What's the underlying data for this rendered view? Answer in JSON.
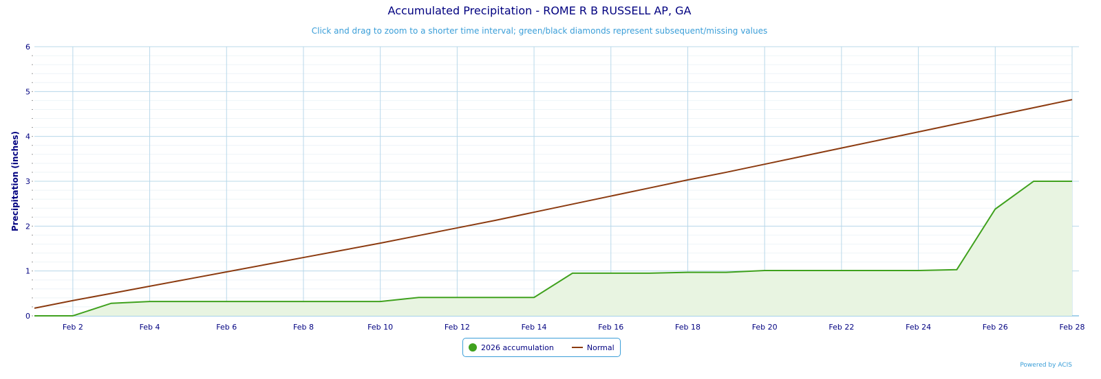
{
  "title": "Accumulated Precipitation - ROME R B RUSSELL AP, GA",
  "subtitle": "Click and drag to zoom to a shorter time interval; green/black diamonds represent subsequent/missing values",
  "credit": "Powered by ACIS",
  "colors": {
    "accum": "#3fa11d",
    "accum_fill": "#e8f4e1",
    "normal": "#8b3a0f",
    "grid": "#b8d8ea",
    "text": "#000080"
  },
  "chart_data": {
    "type": "line",
    "title": "Accumulated Precipitation - ROME R B RUSSELL AP, GA",
    "ylabel": "Precipitation (inches)",
    "xlabel": "",
    "ylim": [
      0,
      6
    ],
    "yticks": [
      "0",
      "1",
      "2",
      "3",
      "4",
      "5",
      "6"
    ],
    "xticks": [
      "Feb 2",
      "Feb 4",
      "Feb 6",
      "Feb 8",
      "Feb 10",
      "Feb 12",
      "Feb 14",
      "Feb 16",
      "Feb 18",
      "Feb 20",
      "Feb 22",
      "Feb 24",
      "Feb 26",
      "Feb 28"
    ],
    "days": [
      1,
      2,
      3,
      4,
      5,
      6,
      7,
      8,
      9,
      10,
      11,
      12,
      13,
      14,
      15,
      16,
      17,
      18,
      19,
      20,
      21,
      22,
      23,
      24,
      25,
      26,
      27,
      28
    ],
    "series": [
      {
        "name": "2026 accumulation",
        "values": [
          0,
          0,
          0.28,
          0.32,
          0.32,
          0.32,
          0.32,
          0.32,
          0.32,
          0.32,
          0.41,
          0.41,
          0.41,
          0.41,
          0.95,
          0.95,
          0.95,
          0.97,
          0.97,
          1.01,
          1.01,
          1.01,
          1.01,
          1.01,
          1.03,
          2.38,
          3.0,
          3.0
        ]
      },
      {
        "name": "Normal",
        "values": [
          0.17,
          0.34,
          0.5,
          0.66,
          0.82,
          0.98,
          1.14,
          1.3,
          1.46,
          1.62,
          1.79,
          1.96,
          2.13,
          2.31,
          2.49,
          2.67,
          2.85,
          3.03,
          3.2,
          3.38,
          3.56,
          3.74,
          3.92,
          4.1,
          4.28,
          4.46,
          4.64,
          4.82
        ]
      }
    ],
    "legend": "bottom-center",
    "grid": true
  }
}
